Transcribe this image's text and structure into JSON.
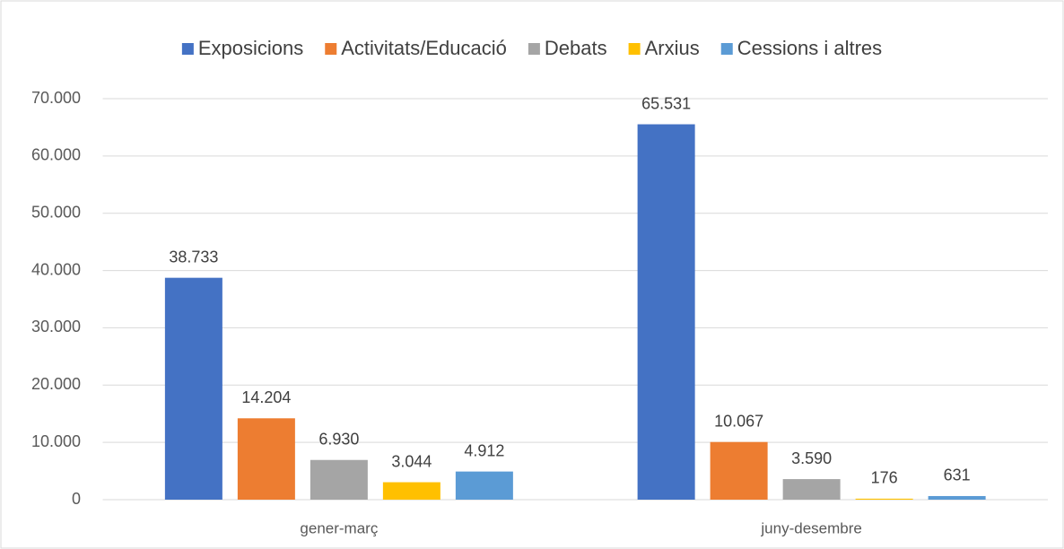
{
  "chart_data": {
    "type": "bar",
    "categories": [
      "gener-març",
      "juny-desembre"
    ],
    "series": [
      {
        "name": "Exposicions",
        "color": "#4472c4",
        "values": [
          38733,
          65531
        ],
        "value_labels": [
          "38.733",
          "65.531"
        ]
      },
      {
        "name": "Activitats/Educació",
        "color": "#ed7d31",
        "values": [
          14204,
          10067
        ],
        "value_labels": [
          "14.204",
          "10.067"
        ]
      },
      {
        "name": "Debats",
        "color": "#a5a5a5",
        "values": [
          6930,
          3590
        ],
        "value_labels": [
          "6.930",
          "3.590"
        ]
      },
      {
        "name": "Arxius",
        "color": "#ffc000",
        "values": [
          3044,
          176
        ],
        "value_labels": [
          "3.044",
          "176"
        ]
      },
      {
        "name": "Cessions i altres",
        "color": "#5b9bd5",
        "values": [
          4912,
          631
        ],
        "value_labels": [
          "4.912",
          "631"
        ]
      }
    ],
    "ylim": [
      0,
      70000
    ],
    "yticks": [
      0,
      {
        "value": 10000,
        "label": "10.000"
      },
      {
        "value": 20000,
        "label": "20.000"
      },
      {
        "value": 30000,
        "label": "30.000"
      },
      {
        "value": 40000,
        "label": "40.000"
      },
      {
        "value": 50000,
        "label": "50.000"
      },
      {
        "value": 60000,
        "label": "60.000"
      },
      {
        "value": 70000,
        "label": "70.000"
      }
    ],
    "grid": true,
    "legend": "top"
  }
}
